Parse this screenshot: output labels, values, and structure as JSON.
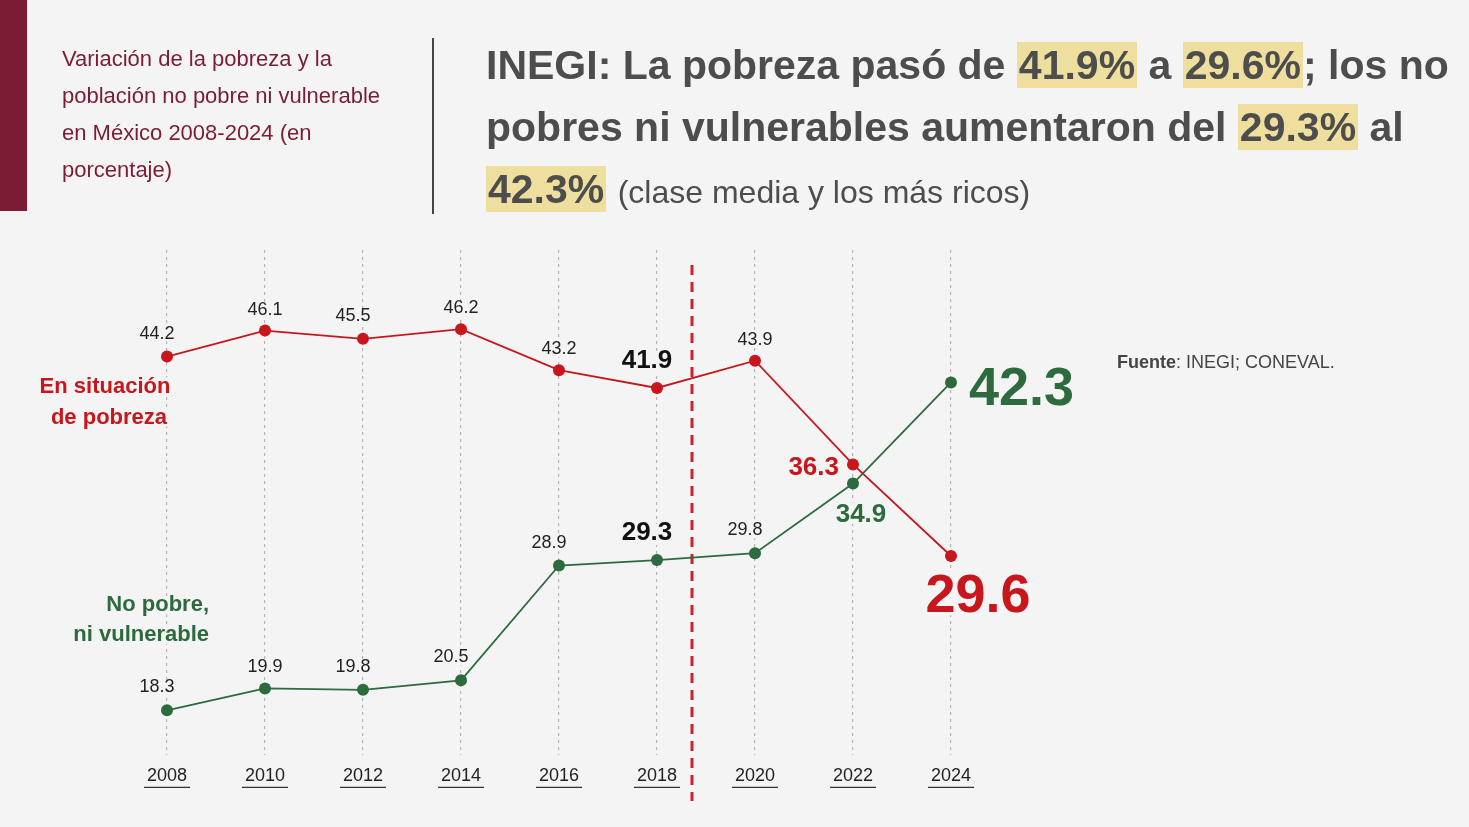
{
  "chart_data": {
    "type": "line",
    "subtitle": "Variación de la pobreza y la población no pobre ni vulnerable en México 2008-2024 (en porcentaje)",
    "title": "INEGI: La pobreza pasó de 41.9% a 29.6%; los no pobres ni vulnerables aumentaron del 29.3% al 42.3%",
    "title_note": "(clase media y los más ricos)",
    "title_highlights": [
      "41.9%",
      "29.6%",
      "29.3%",
      "42.3%"
    ],
    "source": "Fuente: INEGI; CONEVAL.",
    "categories": [
      "2008",
      "2010",
      "2012",
      "2014",
      "2016",
      "2018",
      "2020",
      "2022",
      "2024"
    ],
    "series": [
      {
        "name": "En situación de pobreza",
        "color": "#c8161d",
        "values": [
          44.2,
          46.1,
          45.5,
          46.2,
          43.2,
          41.9,
          43.9,
          36.3,
          29.6
        ]
      },
      {
        "name": "No pobre, ni vulnerable",
        "color": "#2d6a3e",
        "values": [
          18.3,
          19.9,
          19.8,
          20.5,
          28.9,
          29.3,
          29.8,
          34.9,
          42.3
        ]
      }
    ],
    "ylim": [
      15,
      52
    ],
    "grid": "x",
    "tick_labels": "x",
    "data_labels": true,
    "marker": "circle"
  }
}
